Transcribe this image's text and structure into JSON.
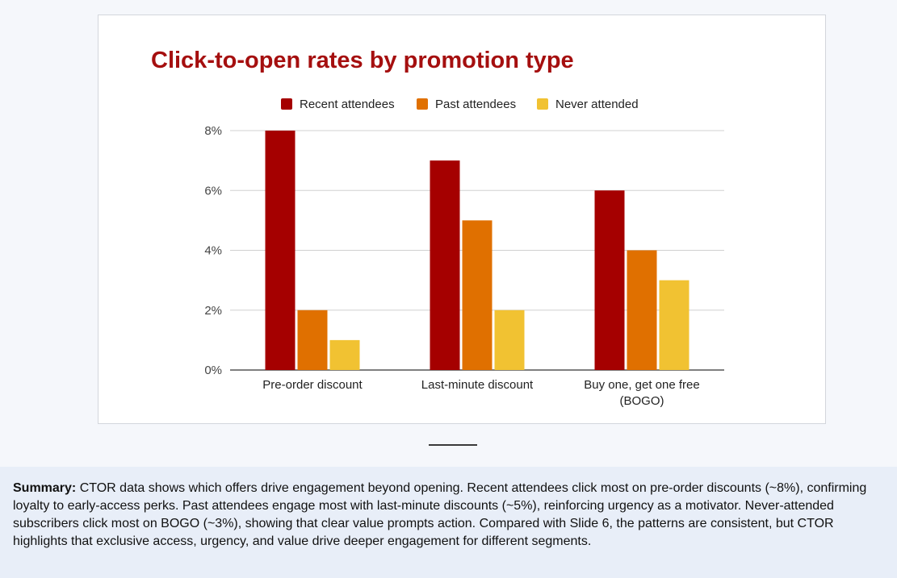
{
  "chart_data": {
    "type": "bar",
    "title": "Click-to-open rates by promotion type",
    "categories": [
      [
        "Pre-order discount"
      ],
      [
        "Last-minute discount"
      ],
      [
        "Buy one, get one free",
        "(BOGO)"
      ]
    ],
    "series": [
      {
        "name": "Recent attendees",
        "color": "#a50000",
        "values": [
          8,
          7,
          6
        ]
      },
      {
        "name": "Past attendees",
        "color": "#e07000",
        "values": [
          2,
          5,
          4
        ]
      },
      {
        "name": "Never attended",
        "color": "#f1c232",
        "values": [
          1,
          2,
          3
        ]
      }
    ],
    "ylim": [
      0,
      8
    ],
    "yticks": [
      0,
      2,
      4,
      6,
      8
    ],
    "ytick_labels": [
      "0%",
      "2%",
      "4%",
      "6%",
      "8%"
    ],
    "grid": true,
    "legend_position": "top"
  },
  "summary": {
    "label": "Summary:",
    "text": " CTOR data shows which offers drive engagement beyond opening. Recent attendees click most on pre-order discounts (~8%), confirming loyalty to early-access perks. Past attendees engage most with last-minute discounts (~5%), reinforcing urgency as a motivator. Never-attended subscribers click most on BOGO (~3%), showing that clear value prompts action. Compared with Slide 6, the patterns are consistent, but CTOR highlights that exclusive access, urgency, and value drive deeper engagement for different segments."
  }
}
